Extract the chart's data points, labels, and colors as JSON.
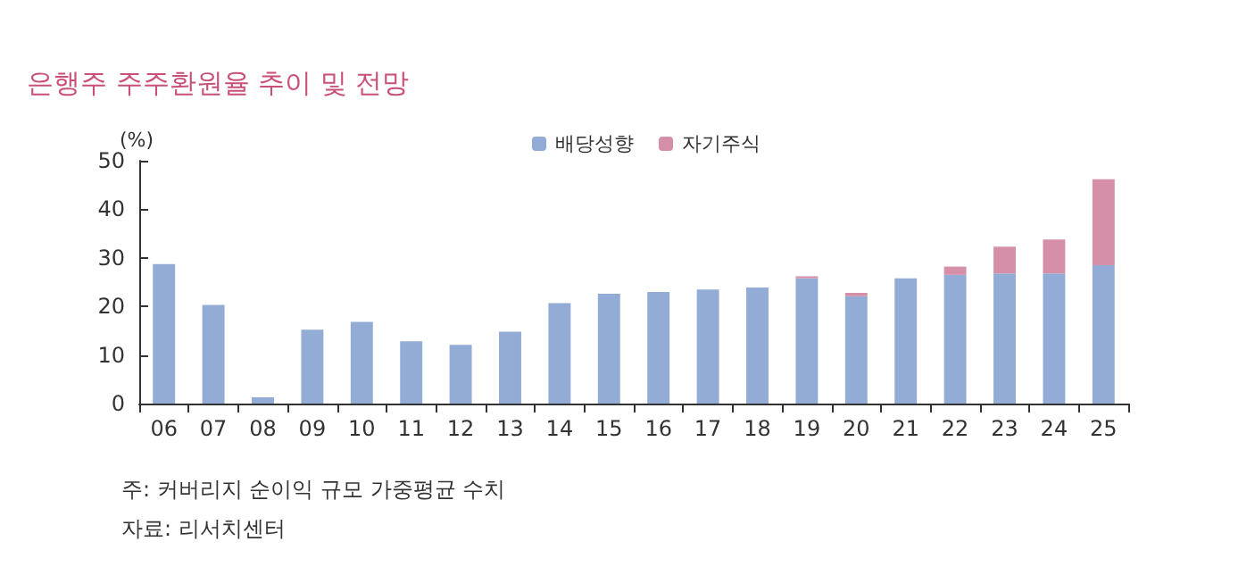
{
  "chart_data": {
    "type": "bar",
    "title": "은행주 주주환원율 추이 및 전망",
    "ylabel": "(%)",
    "stacked": true,
    "categories": [
      "06",
      "07",
      "08",
      "09",
      "10",
      "11",
      "12",
      "13",
      "14",
      "15",
      "16",
      "17",
      "18",
      "19",
      "20",
      "21",
      "22",
      "23",
      "24",
      "25"
    ],
    "series": [
      {
        "name": "배당성향",
        "color": "#93acd6",
        "values": [
          28.7,
          20.3,
          1.3,
          15.2,
          16.8,
          12.8,
          12.1,
          14.8,
          20.7,
          22.6,
          23.0,
          23.5,
          23.9,
          25.8,
          22.1,
          25.8,
          26.5,
          26.8,
          26.8,
          28.5
        ]
      },
      {
        "name": "자기주식",
        "color": "#d68fa8",
        "values": [
          null,
          null,
          null,
          null,
          null,
          null,
          null,
          null,
          null,
          null,
          null,
          null,
          null,
          0.4,
          0.7,
          null,
          1.7,
          5.5,
          7.0,
          17.7
        ]
      }
    ],
    "ylim": [
      0,
      50
    ],
    "yticks": [
      0,
      10,
      20,
      30,
      40,
      50
    ],
    "grid": false,
    "legend": "top",
    "annotations": [
      "주: 커버리지 순이익 규모 가중평균 수치",
      "자료: 리서치센터"
    ]
  }
}
